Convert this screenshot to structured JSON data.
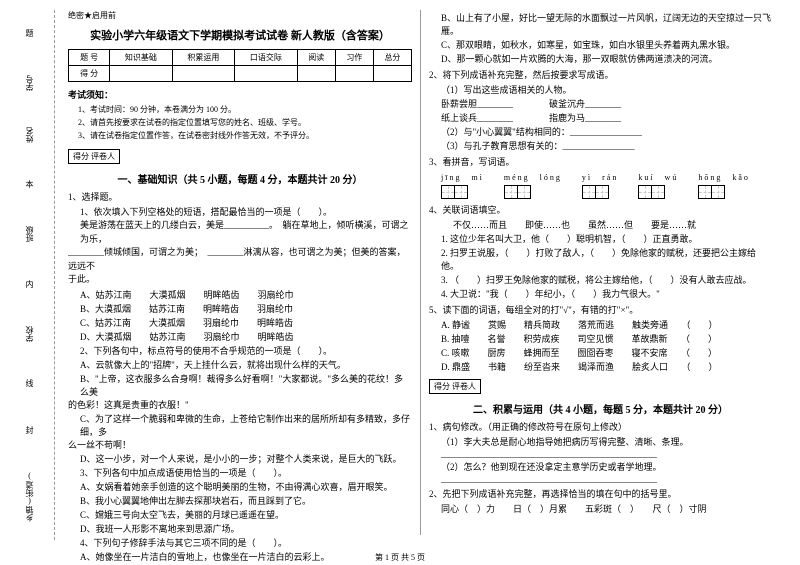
{
  "sidebar": {
    "items": [
      "学号",
      "姓名",
      "班级",
      "学校",
      "乡镇(街道)"
    ],
    "marks": [
      "题",
      "本",
      "内",
      "线",
      "封"
    ]
  },
  "header_mark": "绝密★启用前",
  "title": "实验小学六年级语文下学期模拟考试试卷 新人教版（含答案）",
  "score_table": {
    "row1": [
      "题 号",
      "知识基础",
      "积累运用",
      "口语交际",
      "阅读",
      "习作",
      "总分"
    ],
    "row2": [
      "得 分",
      "",
      "",
      "",
      "",
      "",
      ""
    ]
  },
  "notice": {
    "title": "考试须知：",
    "items": [
      "1、考试时间：90 分钟，本卷满分为 100 分。",
      "2、请首先按要求在试卷的指定位置填写您的姓名、班级、学号。",
      "3、请在试卷指定位置作答，在试卷密封线外作答无效，不予评分。"
    ]
  },
  "section_box": "得分  评卷人",
  "section1_title": "一、基础知识（共 5 小题，每题 4 分，本题共计 20 分）",
  "q1": {
    "stem": "1、选择题。",
    "sub1": "1、依次填入下列空格处的短语，搭配最恰当的一项是（　　）。",
    "text1": "美是游荡在蓝天上的几缕白云，美是__________。　躺在草地上，倾听横溪，可谓之为乐，",
    "text2": "________倾城倾国，可谓之为美；　________淋漓从容，也可谓之为美；但美的答案，远远不",
    "text3": "于此。",
    "opts": [
      "A、姑苏江南　　大漠孤烟　　明眸皓齿　　羽扇纶巾",
      "B、大漠孤烟　　姑苏江南　　明眸皓齿　　羽扇纶巾",
      "C、姑苏江南　　大漠孤烟　　羽扇纶巾　　明眸皓齿",
      "D、大漠孤烟　　姑苏江南　　羽扇纶巾　　明眸皓齿"
    ],
    "sub2": "2、下列各句中，标点符号的使用不合乎规范的一项是（　　）。",
    "sub2a": "A、云就像大上的\"招牌\"，天上挂什么云，就将出现什么样的天气。",
    "sub2b": "B、\"上帝，这衣服多么合身啊！裁得多么好看啊！\"大家都说。\"多么美的花纹！多么美",
    "sub2c": "的色彩！这真是贵重的衣服！\"",
    "sub2d": "C、为了这样一个脆弱和卑微的生命，上苍给它制作出来的居所所却有多精致，多仔细，多",
    "sub2e": "么一丝不苟啊！",
    "sub2f": "D、这一小步，对一个人来说，是小小的一步；对整个人类来说，是巨大的飞跃。",
    "sub3": "3、下列各句中加点成语使用恰当的一项是（　　）。",
    "sub3a": "A、女娲看着她亲手创造的这个聪明美丽的生物，不由得满心欢喜，眉开眼笑。",
    "sub3b": "B、我小心翼翼地伸出左脚去探那块岩石，而且踩到了它。",
    "sub3c": "C、嫦娥三号向太空飞去，美丽的月球已遥遥在望。",
    "sub3d": "D、我班一人形影不离地来到思源广场。",
    "sub4": "4、下列句子修辞手法与其它三项不同的是（　　）。",
    "sub4a": "A、她像坐在一片洁白的雪地上，也像坐在一片洁白的云彩上。"
  },
  "col2": {
    "opts_b": "B、山上有了小屋，好比一望无际的水面飘过一片风帆，辽阔无边的天空掠过一只飞雁。",
    "opts_c": "C、那双眼睛，如秋水，如寒星，如宝珠，如白水银里头养着两丸黑水银。",
    "opts_d": "D、那一颗心就如一片欢腾的大海，那一双眼就仿佛两道溃决的河流。",
    "q2": "2、将下列成语补充完整，然后按要求写成语。",
    "q2_1": "（1）写出这些成语相关的人物。",
    "q2_1a": "卧薪尝胆________　　　　破釜沉舟________",
    "q2_1b": "纸上谈兵________　　　　指鹿为马________",
    "q2_2": "（2）与\"小心翼翼\"结构相同的：________________",
    "q2_3": "（3）与孔子教育思想有关的：________________",
    "q3": "3、看拼音，写词语。",
    "pinyin": [
      {
        "py": "jīng　mì",
        "cells": 2
      },
      {
        "py": "méng　lóng",
        "cells": 2
      },
      {
        "py": "yì　rán",
        "cells": 2
      },
      {
        "py": "kuí　wú",
        "cells": 2
      },
      {
        "py": "hōng　kǎo",
        "cells": 2
      }
    ],
    "q4": "4、关联词语填空。",
    "q4_words": "不仅……而且　　即使……也　　虽然……但　　要是……就",
    "q4_1": "1. 这位少年名叫大卫，他（　　）聪明机智，（　　）正直勇敢。",
    "q4_2": "2. 扫罗王说服，（　　）打败了敌人，（　　）免除他家的赋税，还要把公主嫁给他。",
    "q4_3": "3. （　　）扫罗王免除他家的赋税，将公主嫁给他，（　　）没有人敢去应战。",
    "q4_4": "4. 大卫说：\"我（　　）年纪小，（　　）我力气很大。\"",
    "q5": "5、读下面的词语，每组全对的打\"√\"，有错的打\"×\"。",
    "q5a": "A. 静谧　　赏赐　　精兵简政　　落荒而逃　　触类旁通　　（　　）",
    "q5b": "B. 抽噎　　名誉　　积劳成疾　　司空见惯　　革故鼎新　　（　　）",
    "q5c": "C. 咳嗽　　厨房　　蜂拥而至　　囫囵吞枣　　寝不安席　　（　　）",
    "q5d": "D. 鼎盛　　书籍　　纷至沓来　　竭泽而渔　　脍炙人口　　（　　）"
  },
  "section2_title": "二、积累与运用（共 4 小题，每题 5 分，本题共计 20 分）",
  "sq1": "1、病句修改。（用正确的修改符号在原句上修改）",
  "sq1_1": "（1）李大夫总是耐心地指导她把病历写得完整、清晰、条理。",
  "sq1_line": "________________________________________________",
  "sq1_2": "（2）怎么？他到现在还没拿定主意学历史或者学地理。",
  "sq1_2line": "________________________________________________",
  "sq2": "2、先把下列成语补充完整，再选择恰当的填在句中的括号里。",
  "sq2_words": "同心（　）力　　日（　）月累　　五彩斑（　）　　尺（　）寸阴",
  "footer": "第 1 页 共 5 页"
}
